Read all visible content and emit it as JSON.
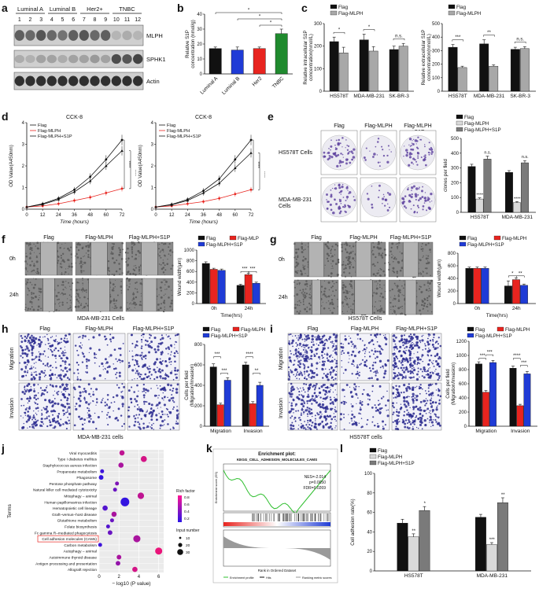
{
  "panel_labels": {
    "a": "a",
    "b": "b",
    "c": "c",
    "d": "d",
    "e": "e",
    "f": "f",
    "g": "g",
    "h": "h",
    "i": "i",
    "j": "j",
    "k": "k",
    "l": "l"
  },
  "colors": {
    "black": "#111111",
    "red": "#e8241f",
    "blue": "#1f3bd6",
    "green": "#1f8a2e",
    "grey": "#a8a8a8",
    "light": "#d9d9d9",
    "mid": "#7a7a7a"
  },
  "panel_a": {
    "groups": [
      "Luminal A",
      "Luminal B",
      "Her2+",
      "TNBC"
    ],
    "lanes": [
      "1",
      "2",
      "3",
      "4",
      "5",
      "6",
      "7",
      "8",
      "9",
      "10",
      "11",
      "12"
    ],
    "bands": [
      "MLPH",
      "SPHK1",
      "Actin"
    ]
  },
  "panel_f_caption": "MDA-MB-231 Cells",
  "panel_g_caption": "HS578T Cells",
  "panel_h_caption": "MDA-MB-231 cells",
  "panel_i_caption": "HS578T cells",
  "img_headers": {
    "e": [
      "Flag",
      "Flag-MLPH",
      "Flag-MLPH\n+S1P"
    ],
    "e_rows": [
      "HS578T Cells",
      "MDA-MB-231\nCells"
    ],
    "f": [
      "Flag",
      "Flag-MLPH",
      "Flag-MLPH+S1P"
    ],
    "g": [
      "Flag",
      "Flag-MLPH",
      "Flag-MLPH+S1P"
    ],
    "h": [
      "Flag",
      "Flag-MLPH",
      "Flag-MLPH+S1P"
    ],
    "i": [
      "Flag",
      "Flag-MLPH",
      "Flag-MLPH+S1P"
    ],
    "time_rows": [
      "0h",
      "24h"
    ],
    "mig_rows": [
      "Migration",
      "Invasion"
    ]
  },
  "chart_data": [
    {
      "id": "b",
      "type": "bar",
      "categories": [
        "Luminal A",
        "Luminal B",
        "Her2",
        "TNBC"
      ],
      "values": [
        17,
        16,
        17,
        27
      ],
      "errors": [
        1,
        2,
        1,
        3
      ],
      "colors": [
        "#111111",
        "#1f3bd6",
        "#e8241f",
        "#1f8a2e"
      ],
      "ylabel": "Relative S1P\nconcentration (nmol/g)",
      "ylim": [
        0,
        40
      ],
      "yticks": [
        0,
        10,
        20,
        30,
        40
      ],
      "sig": [
        "*",
        "*",
        "*"
      ]
    },
    {
      "id": "c1",
      "type": "bar",
      "legend": [
        "Flag",
        "Flag-MLPH"
      ],
      "categories": [
        "HS578T",
        "MDA-MB-231",
        "SK-BR-3"
      ],
      "series": [
        {
          "name": "Flag",
          "values": [
            220,
            228,
            185
          ]
        },
        {
          "name": "Flag-MLPH",
          "values": [
            170,
            178,
            200
          ]
        }
      ],
      "errors": [
        [
          20,
          25,
          15
        ],
        [
          25,
          20,
          12
        ]
      ],
      "ylabel": "Relative intracellular S1P\nconcentration(nmol/L)",
      "ylim": [
        0,
        300
      ],
      "yticks": [
        0,
        100,
        200,
        300
      ],
      "sig": [
        "*",
        "*",
        "n.s."
      ]
    },
    {
      "id": "c2",
      "type": "bar",
      "legend": [
        "Flag",
        "Flag-MLPH"
      ],
      "categories": [
        "HS578T",
        "MDA-MB-231",
        "SK-BR-3"
      ],
      "series": [
        {
          "name": "Flag",
          "values": [
            325,
            350,
            310
          ]
        },
        {
          "name": "Flag-MLPH",
          "values": [
            175,
            185,
            315
          ]
        }
      ],
      "errors": [
        [
          20,
          30,
          15
        ],
        [
          10,
          10,
          15
        ]
      ],
      "ylabel": "Relative extracellular S1P\nconcentration(nmol/L)",
      "ylim": [
        0,
        500
      ],
      "yticks": [
        0,
        100,
        200,
        300,
        400,
        500
      ],
      "sig": [
        "***",
        "**",
        "n.s."
      ]
    },
    {
      "id": "d1",
      "type": "line",
      "title": "CCK-8",
      "x": [
        0,
        12,
        24,
        36,
        48,
        60,
        72
      ],
      "series": [
        {
          "name": "Flag",
          "values": [
            0.1,
            0.25,
            0.5,
            0.9,
            1.5,
            2.3,
            3.2
          ]
        },
        {
          "name": "Flag-MLPH",
          "values": [
            0.1,
            0.15,
            0.25,
            0.4,
            0.55,
            0.75,
            0.95
          ]
        },
        {
          "name": "Flag-MLPH+S1P",
          "values": [
            0.1,
            0.22,
            0.45,
            0.8,
            1.3,
            2.0,
            2.7
          ]
        }
      ],
      "xlabel": "Time (hours)",
      "ylabel": "OD Value(A450nm)",
      "ylim": [
        0,
        4
      ],
      "yticks": [
        0,
        1,
        2,
        3,
        4
      ],
      "sig": [
        "****",
        "****"
      ]
    },
    {
      "id": "d2",
      "type": "line",
      "title": "CCK-8",
      "x": [
        0,
        12,
        24,
        36,
        48,
        60,
        72
      ],
      "series": [
        {
          "name": "Flag",
          "values": [
            0.1,
            0.22,
            0.45,
            0.85,
            1.4,
            2.3,
            3.2
          ]
        },
        {
          "name": "Flag-MLPH",
          "values": [
            0.1,
            0.15,
            0.25,
            0.35,
            0.5,
            0.7,
            0.9
          ]
        },
        {
          "name": "Flag-MLPH+S1P",
          "values": [
            0.1,
            0.2,
            0.4,
            0.75,
            1.2,
            1.9,
            2.6
          ]
        }
      ],
      "xlabel": "Time (hours)",
      "ylabel": "OD Value(A450nm)",
      "ylim": [
        0,
        4
      ],
      "yticks": [
        0,
        1,
        2,
        3,
        4
      ],
      "sig": [
        "****",
        "****"
      ]
    },
    {
      "id": "e",
      "type": "bar",
      "legend": [
        "Flag",
        "Flag-MLPH",
        "Flag-MLPH+S1P"
      ],
      "categories": [
        "HS578T",
        "MDA-MB-231"
      ],
      "series": [
        {
          "name": "Flag",
          "values": [
            310,
            270
          ]
        },
        {
          "name": "Flag-MLPH",
          "values": [
            90,
            65
          ]
        },
        {
          "name": "Flag-MLPH+S1P",
          "values": [
            360,
            335
          ]
        }
      ],
      "errors": [
        [
          15,
          12
        ],
        [
          8,
          8
        ],
        [
          20,
          15
        ]
      ],
      "ylabel": "clones per field",
      "ylim": [
        0,
        500
      ],
      "yticks": [
        0,
        100,
        200,
        300,
        400,
        500
      ],
      "sig": [
        "****",
        "n.s.",
        "****",
        "n.s."
      ]
    },
    {
      "id": "f",
      "type": "bar",
      "legend": [
        "Flag",
        "Flag-MLP",
        "Flag-MLPH+S1P"
      ],
      "categories": [
        "0h",
        "24h"
      ],
      "series": [
        {
          "name": "Flag",
          "values": [
            750,
            340
          ]
        },
        {
          "name": "Flag-MLPH",
          "values": [
            640,
            540
          ]
        },
        {
          "name": "Flag-MLPH+S1P",
          "values": [
            620,
            380
          ]
        }
      ],
      "errors": [
        [
          30,
          20
        ],
        [
          20,
          25
        ],
        [
          25,
          20
        ]
      ],
      "xlabel": "Time(hrs)",
      "ylabel": "Wound width(μm)",
      "ylim": [
        0,
        1000
      ],
      "yticks": [
        0,
        200,
        400,
        600,
        800,
        1000
      ],
      "sig": [
        "***",
        "***"
      ]
    },
    {
      "id": "g",
      "type": "bar",
      "legend": [
        "Flag",
        "Flag-MLPH",
        "Flag-MLPH+S1P"
      ],
      "categories": [
        "0h",
        "24h"
      ],
      "series": [
        {
          "name": "Flag",
          "values": [
            560,
            280
          ]
        },
        {
          "name": "Flag-MLPH",
          "values": [
            560,
            380
          ]
        },
        {
          "name": "Flag-MLPH+S1P",
          "values": [
            560,
            290
          ]
        }
      ],
      "errors": [
        [
          20,
          80
        ],
        [
          20,
          30
        ],
        [
          20,
          20
        ]
      ],
      "xlabel": "Time(hrs)",
      "ylabel": "Wound width(μm)",
      "ylim": [
        0,
        800
      ],
      "yticks": [
        0,
        200,
        400,
        600,
        800
      ],
      "sig": [
        "*",
        "**"
      ]
    },
    {
      "id": "h",
      "type": "bar",
      "legend": [
        "Flag",
        "Flag-MLPH",
        "Flag-MLPH+S1P"
      ],
      "categories": [
        "Migration",
        "Invasion"
      ],
      "series": [
        {
          "name": "Flag",
          "values": [
            580,
            600
          ]
        },
        {
          "name": "Flag-MLPH",
          "values": [
            210,
            220
          ]
        },
        {
          "name": "Flag-MLPH+S1P",
          "values": [
            450,
            400
          ]
        }
      ],
      "errors": [
        [
          30,
          25
        ],
        [
          15,
          20
        ],
        [
          25,
          30
        ]
      ],
      "ylabel": "Cells per field\n(Migration/Invasion)",
      "ylim": [
        0,
        800
      ],
      "yticks": [
        0,
        200,
        400,
        600,
        800
      ],
      "sig": [
        "***",
        "***",
        "****",
        "**"
      ]
    },
    {
      "id": "i",
      "type": "bar",
      "legend": [
        "Flag",
        "Flag-MLPH",
        "Flag-MLPH+S1P"
      ],
      "categories": [
        "Migration",
        "Invasion"
      ],
      "series": [
        {
          "name": "Flag",
          "values": [
            880,
            820
          ]
        },
        {
          "name": "Flag-MLPH",
          "values": [
            480,
            290
          ]
        },
        {
          "name": "Flag-MLPH+S1P",
          "values": [
            900,
            740
          ]
        }
      ],
      "errors": [
        [
          30,
          30
        ],
        [
          25,
          20
        ],
        [
          30,
          35
        ]
      ],
      "ylabel": "Cells per field\n(Migration/Invasion)",
      "ylim": [
        0,
        1200
      ],
      "yticks": [
        0,
        200,
        400,
        600,
        800,
        1000,
        1200
      ],
      "sig": [
        "***",
        "***",
        "****",
        "***"
      ]
    },
    {
      "id": "j",
      "type": "scatter",
      "terms": [
        "Viral myocarditis",
        "Type I diabetes mellitus",
        "Staphylococcus aureus infection",
        "Propanoate metabolism",
        "Phagosome",
        "Pentose phosphate pathway",
        "Natural killer cell mediated cytotoxicity",
        "Mitophagy – animal",
        "Human papillomavirus infection",
        "Hematopoietic cell lineage",
        "Graft–versus–host disease",
        "Glutathione metabolism",
        "Folate biosynthesis",
        "Fc gamma R–mediated phagocytosis",
        "Cell adhesion molecules (CAMs)",
        "Carbon metabolism",
        "Autophagy – animal",
        "Autoimmune thyroid disease",
        "Antigen processing and presentation",
        "Allograft rejection"
      ],
      "x": [
        2.3,
        4.5,
        2.2,
        0.3,
        0.2,
        1.8,
        1.6,
        4.2,
        2.6,
        0.6,
        1.5,
        1.3,
        0.9,
        1.1,
        3.8,
        0.1,
        6.0,
        2.0,
        1.9,
        3.6
      ],
      "size": [
        3,
        5,
        3,
        1,
        2,
        1,
        1,
        6,
        14,
        3,
        3,
        1,
        1,
        2,
        8,
        1,
        8,
        2,
        2,
        3
      ],
      "rich": [
        0.7,
        0.8,
        0.6,
        0.1,
        0.05,
        0.4,
        0.3,
        0.7,
        0.05,
        0.2,
        0.6,
        0.3,
        0.2,
        0.3,
        0.6,
        0.1,
        0.9,
        0.6,
        0.5,
        0.8
      ],
      "xlabel": "− log10 (P value)",
      "ylabel": "Terms",
      "xticks": [
        0,
        2,
        4,
        6
      ],
      "legend_color_title": "Rich factor",
      "legend_color_ticks": [
        "0.8",
        "0.6",
        "0.4",
        "0.2"
      ],
      "legend_size_title": "Input number",
      "legend_size_ticks": [
        "10",
        "20",
        "30"
      ]
    },
    {
      "id": "k",
      "type": "line",
      "title": "Enrichment plot:",
      "subtitle": "KEGG_CELL_ADHESION_MOLECULES_CAMS",
      "annotation": [
        "NES=-2.014",
        "p=0.0050",
        "FDR=0.0269"
      ],
      "ylabel": "Enrichment score (ES)",
      "xlabel": "Rank in Ordered Dataset",
      "legend": [
        "Enrichment profile",
        "Hits",
        "Ranking metric scores"
      ]
    },
    {
      "id": "l",
      "type": "bar",
      "legend": [
        "Flag",
        "Flag-MLPH",
        "Flag-MLPH+S1P"
      ],
      "categories": [
        "HS578T",
        "MDA-MB-231"
      ],
      "series": [
        {
          "name": "Flag",
          "values": [
            49,
            55
          ]
        },
        {
          "name": "Flag-MLPH",
          "values": [
            35,
            27
          ]
        },
        {
          "name": "Flag-MLPH+S1P",
          "values": [
            62,
            70
          ]
        }
      ],
      "errors": [
        [
          4,
          3
        ],
        [
          3,
          2
        ],
        [
          4,
          5
        ]
      ],
      "ylabel": "Cell adhesion rate(%)",
      "ylim": [
        0,
        100
      ],
      "yticks": [
        0,
        20,
        40,
        60,
        80,
        100
      ],
      "sig": [
        "**",
        "*",
        "***",
        "**"
      ]
    }
  ]
}
